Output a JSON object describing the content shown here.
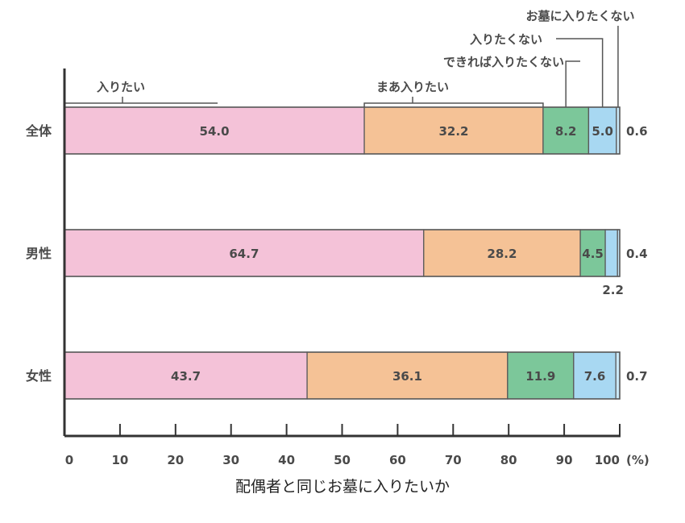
{
  "chart_data": {
    "type": "bar",
    "orientation": "horizontal",
    "stacked": true,
    "categories": [
      "全体",
      "男性",
      "女性"
    ],
    "series": [
      {
        "name": "入りたい",
        "values": [
          54.0,
          64.7,
          43.7
        ],
        "color": "#f4c2d8"
      },
      {
        "name": "まあ入りたい",
        "values": [
          32.2,
          28.2,
          36.1
        ],
        "color": "#f5c296"
      },
      {
        "name": "できれば入りたくない",
        "values": [
          8.2,
          4.5,
          11.9
        ],
        "color": "#7cc79a"
      },
      {
        "name": "入りたくない",
        "values": [
          5.0,
          2.2,
          7.6
        ],
        "color": "#a8d8f2"
      },
      {
        "name": "お墓に入りたくない",
        "values": [
          0.6,
          0.4,
          0.7
        ],
        "color": "#c9e8f8"
      }
    ],
    "value_labels": [
      [
        "54.0",
        "32.2",
        "8.2",
        "5.0",
        "0.6"
      ],
      [
        "64.7",
        "28.2",
        "4.5",
        "2.2",
        "0.4"
      ],
      [
        "43.7",
        "36.1",
        "11.9",
        "7.6",
        "0.7"
      ]
    ],
    "xlim": [
      0,
      100
    ],
    "xticks": [
      "0",
      "10",
      "20",
      "30",
      "40",
      "50",
      "60",
      "70",
      "80",
      "90",
      "100"
    ],
    "x_unit": "(%)",
    "xlabel": "配偶者と同じお墓に入りたいか",
    "legend": "callouts-top"
  }
}
